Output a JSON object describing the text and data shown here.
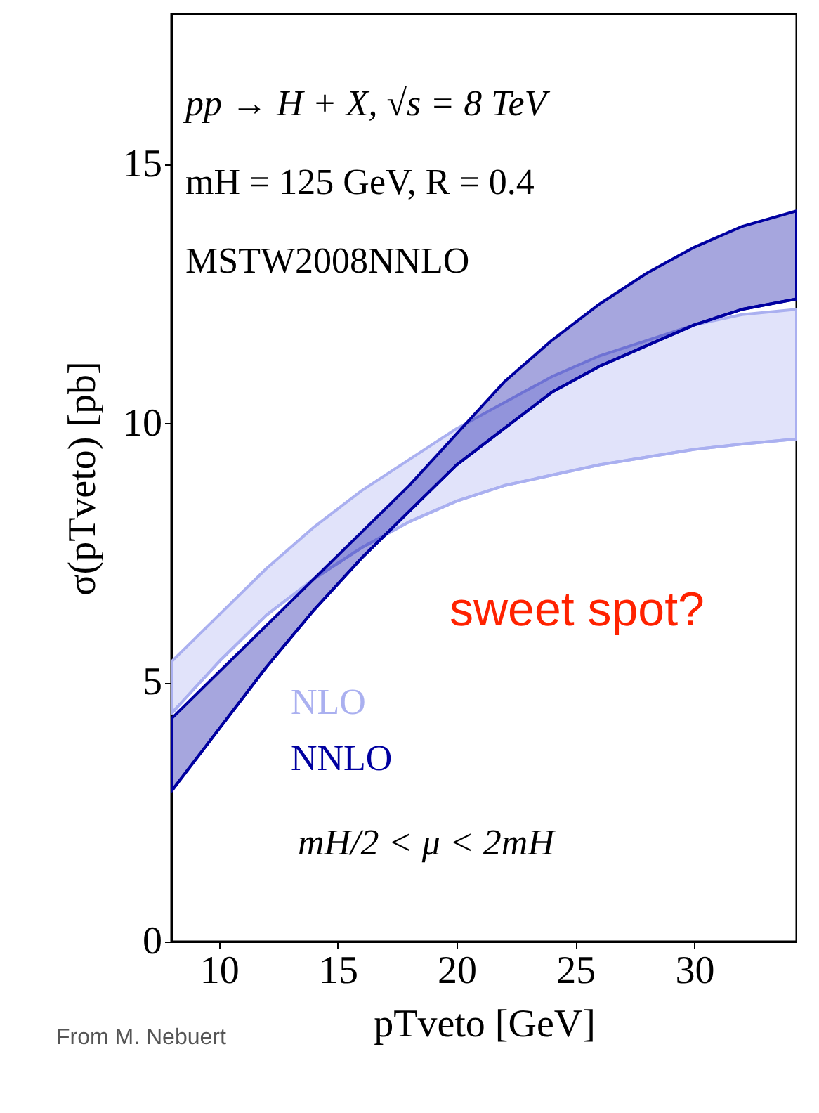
{
  "chart_data": {
    "type": "line",
    "xlabel": "pTveto [GeV]",
    "ylabel": "σ(pTveto) [pb]",
    "x": [
      8,
      10,
      12,
      14,
      16,
      18,
      20,
      22,
      24,
      26,
      28,
      30,
      32,
      34.3
    ],
    "series": [
      {
        "name": "NLO",
        "color": "#aab0f0",
        "values": [
          4.4,
          5.4,
          6.3,
          7.0,
          7.6,
          8.1,
          8.5,
          8.8,
          9.0,
          9.2,
          9.35,
          9.5,
          9.6,
          9.7
        ],
        "lower": [
          4.4,
          5.4,
          6.3,
          7.0,
          7.6,
          8.1,
          8.5,
          8.8,
          9.0,
          9.2,
          9.35,
          9.5,
          9.6,
          9.7
        ],
        "upper": [
          5.4,
          6.3,
          7.2,
          8.0,
          8.7,
          9.3,
          9.9,
          10.4,
          10.9,
          11.3,
          11.6,
          11.9,
          12.1,
          12.2
        ]
      },
      {
        "name": "NNLO",
        "color": "#0000a0",
        "values": [
          2.9,
          4.1,
          5.3,
          6.4,
          7.4,
          8.3,
          9.2,
          9.9,
          10.6,
          11.1,
          11.5,
          11.9,
          12.2,
          12.4
        ],
        "lower": [
          2.9,
          4.1,
          5.3,
          6.4,
          7.4,
          8.3,
          9.2,
          9.9,
          10.6,
          11.1,
          11.5,
          11.9,
          12.2,
          12.4
        ],
        "upper": [
          4.3,
          5.2,
          6.1,
          7.0,
          7.9,
          8.8,
          9.8,
          10.8,
          11.6,
          12.3,
          12.9,
          13.4,
          13.8,
          14.1
        ]
      }
    ],
    "annotations": [
      "pp → H + X, √s = 8 TeV",
      "mH = 125 GeV, R = 0.4",
      "MSTW2008NNLO",
      "mH/2 < μ < 2mH",
      "sweet spot?",
      "From M. Nebuert"
    ],
    "xlim": [
      8,
      34.3
    ],
    "ylim": [
      0,
      17.9
    ],
    "xticks": [
      10,
      15,
      20,
      25,
      30
    ],
    "yticks": [
      0,
      5,
      10,
      15
    ],
    "legend": "bottom left",
    "grid": false
  }
}
